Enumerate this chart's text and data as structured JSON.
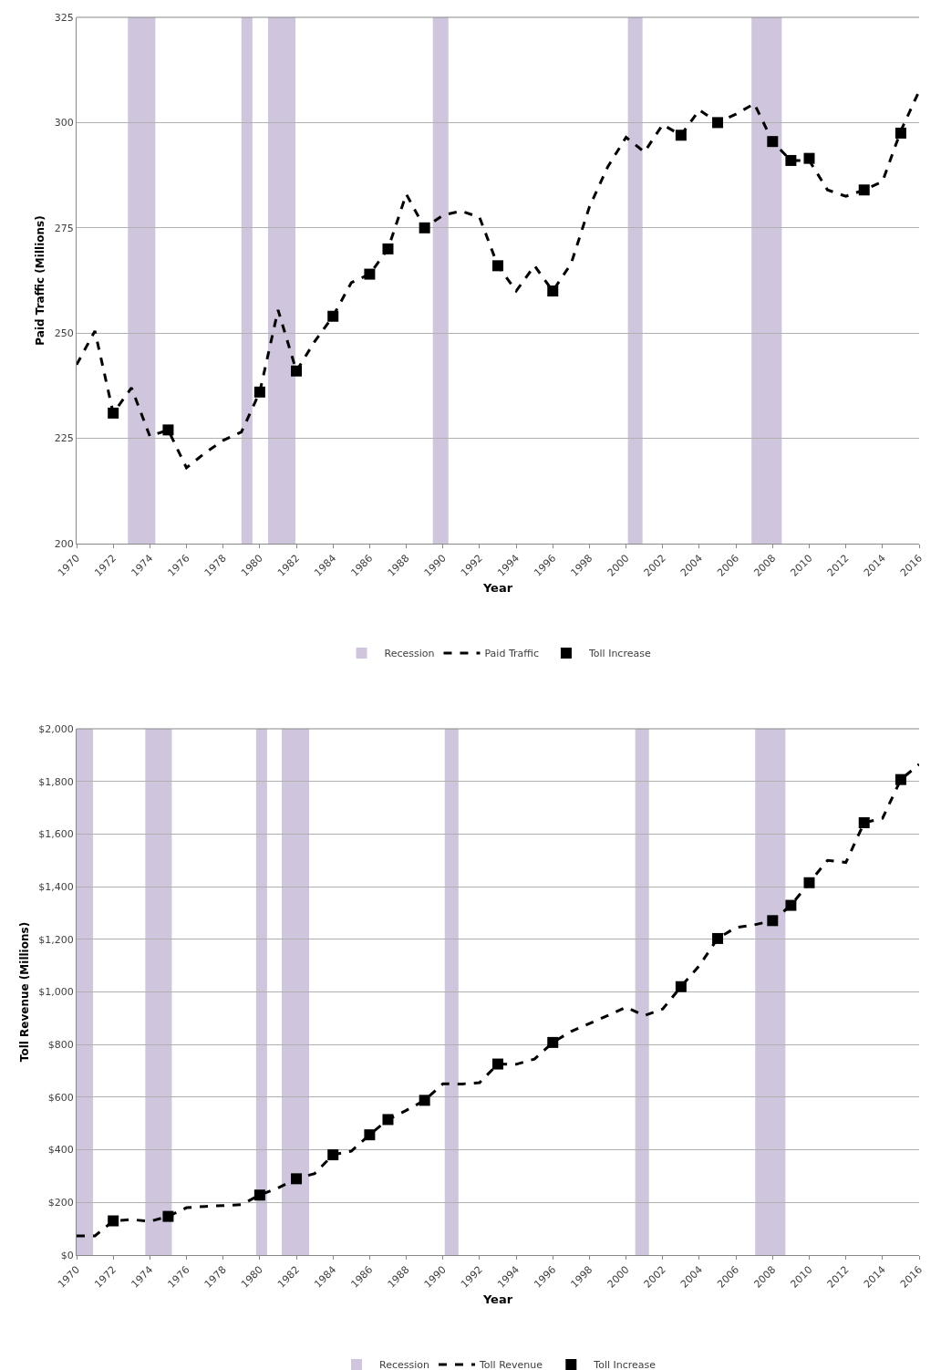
{
  "chart_data": [
    {
      "type": "line",
      "xlabel": "Year",
      "ylabel": "Paid Traffic (Millions)",
      "xlim": [
        1970,
        2016
      ],
      "xticks": [
        1970,
        1972,
        1974,
        1976,
        1978,
        1980,
        1982,
        1984,
        1986,
        1988,
        1990,
        1992,
        1994,
        1996,
        1998,
        2000,
        2002,
        2004,
        2006,
        2008,
        2010,
        2012,
        2014,
        2016
      ],
      "ylim": [
        200,
        325
      ],
      "yticks": [
        200,
        225,
        250,
        275,
        300,
        325
      ],
      "grid": "y",
      "legend": "bottom",
      "x": [
        1970,
        1971,
        1972,
        1973,
        1974,
        1975,
        1976,
        1977,
        1978,
        1979,
        1980,
        1981,
        1982,
        1983,
        1984,
        1985,
        1986,
        1987,
        1988,
        1989,
        1990,
        1991,
        1992,
        1993,
        1994,
        1995,
        1996,
        1997,
        1998,
        1999,
        2000,
        2001,
        2002,
        2003,
        2004,
        2005,
        2006,
        2007,
        2008,
        2009,
        2010,
        2011,
        2012,
        2013,
        2014,
        2015,
        2016
      ],
      "series": [
        {
          "name": "Paid Traffic",
          "color": "#000000",
          "line_style": "dashed",
          "marker": "none",
          "values": [
            242.5,
            250.5,
            231,
            237,
            225.5,
            227,
            218,
            221.5,
            224.5,
            226.5,
            236,
            255.5,
            241,
            248,
            254,
            262,
            264,
            270,
            283,
            275,
            278,
            279,
            277.5,
            266,
            260,
            266,
            260,
            266.5,
            280,
            289.5,
            296.5,
            293,
            299.5,
            297,
            303,
            300,
            302,
            304.5,
            295.5,
            291,
            291,
            284,
            282.5,
            284,
            286,
            298,
            307.5
          ]
        },
        {
          "name": "Toll Increase",
          "type": "scatter",
          "color": "#000000",
          "marker": "square",
          "x": [
            1972,
            1975,
            1980,
            1982,
            1984,
            1986,
            1987,
            1989,
            1993,
            1996,
            2003,
            2005,
            2008,
            2009,
            2010,
            2013,
            2015
          ],
          "values": [
            231,
            227,
            236,
            241,
            254,
            264,
            270,
            275,
            266,
            260,
            297,
            300,
            295.5,
            291,
            291.5,
            284,
            297.5
          ]
        }
      ],
      "bands": [
        {
          "axis": "x",
          "from": 1972.8,
          "to": 1974.3,
          "label": "Recession",
          "color": "#cfc6dd"
        },
        {
          "axis": "x",
          "from": 1979.0,
          "to": 1979.6,
          "color": "#cfc6dd"
        },
        {
          "axis": "x",
          "from": 1980.45,
          "to": 1981.95,
          "color": "#cfc6dd"
        },
        {
          "axis": "x",
          "from": 1989.45,
          "to": 1990.3,
          "color": "#cfc6dd"
        },
        {
          "axis": "x",
          "from": 2000.1,
          "to": 2000.9,
          "color": "#cfc6dd"
        },
        {
          "axis": "x",
          "from": 2006.85,
          "to": 2008.5,
          "color": "#cfc6dd"
        }
      ]
    },
    {
      "type": "line",
      "xlabel": "Year",
      "ylabel": "Toll Revenue (Millions)",
      "xlim": [
        1970,
        2016
      ],
      "xticks": [
        1970,
        1972,
        1974,
        1976,
        1978,
        1980,
        1982,
        1984,
        1986,
        1988,
        1990,
        1992,
        1994,
        1996,
        1998,
        2000,
        2002,
        2004,
        2006,
        2008,
        2010,
        2012,
        2014,
        2016
      ],
      "ylim": [
        0,
        2000
      ],
      "yticks": [
        {
          "value": 0,
          "label": "$0"
        },
        {
          "value": 200,
          "label": "$200"
        },
        {
          "value": 400,
          "label": "$400"
        },
        {
          "value": 600,
          "label": "$600"
        },
        {
          "value": 800,
          "label": "$800"
        },
        {
          "value": 1000,
          "label": "$1,000"
        },
        {
          "value": 1200,
          "label": "$1,200"
        },
        {
          "value": 1400,
          "label": "$1,400"
        },
        {
          "value": 1600,
          "label": "$1,600"
        },
        {
          "value": 1800,
          "label": "$1,800"
        },
        {
          "value": 2000,
          "label": "$2,000"
        }
      ],
      "grid": "y",
      "legend": "bottom",
      "x": [
        1970,
        1971,
        1972,
        1973,
        1974,
        1975,
        1976,
        1977,
        1978,
        1979,
        1980,
        1981,
        1982,
        1983,
        1984,
        1985,
        1986,
        1987,
        1988,
        1989,
        1990,
        1991,
        1992,
        1993,
        1994,
        1995,
        1996,
        1997,
        1998,
        1999,
        2000,
        2001,
        2002,
        2003,
        2004,
        2005,
        2006,
        2007,
        2008,
        2009,
        2010,
        2011,
        2012,
        2013,
        2014,
        2015,
        2016
      ],
      "series": [
        {
          "name": "Toll Revenue",
          "color": "#000000",
          "line_style": "dashed",
          "marker": "none",
          "values": [
            73,
            73,
            130,
            135,
            128,
            147,
            180,
            185,
            188,
            192,
            228,
            255,
            290,
            310,
            381,
            395,
            457,
            515,
            550,
            588,
            651,
            650,
            655,
            726,
            725,
            745,
            808,
            850,
            880,
            910,
            942,
            910,
            935,
            1020,
            1100,
            1203,
            1245,
            1255,
            1271,
            1329,
            1415,
            1500,
            1492,
            1643,
            1660,
            1807,
            1865
          ]
        },
        {
          "name": "Toll Increase",
          "type": "scatter",
          "color": "#000000",
          "marker": "square",
          "x": [
            1972,
            1975,
            1980,
            1982,
            1984,
            1986,
            1987,
            1989,
            1993,
            1996,
            2003,
            2005,
            2008,
            2009,
            2010,
            2013,
            2015
          ],
          "values": [
            130,
            147,
            228,
            290,
            381,
            457,
            515,
            588,
            726,
            808,
            1020,
            1203,
            1271,
            1329,
            1415,
            1643,
            1807
          ]
        }
      ],
      "bands": [
        {
          "axis": "x",
          "from": 1970.0,
          "to": 1970.9,
          "label": "Recession",
          "color": "#cfc6dd"
        },
        {
          "axis": "x",
          "from": 1973.75,
          "to": 1975.2,
          "color": "#cfc6dd"
        },
        {
          "axis": "x",
          "from": 1979.8,
          "to": 1980.4,
          "color": "#cfc6dd"
        },
        {
          "axis": "x",
          "from": 1981.2,
          "to": 1982.7,
          "color": "#cfc6dd"
        },
        {
          "axis": "x",
          "from": 1990.1,
          "to": 1990.85,
          "color": "#cfc6dd"
        },
        {
          "axis": "x",
          "from": 2000.5,
          "to": 2001.25,
          "color": "#cfc6dd"
        },
        {
          "axis": "x",
          "from": 2007.05,
          "to": 2008.7,
          "color": "#cfc6dd"
        }
      ]
    }
  ]
}
